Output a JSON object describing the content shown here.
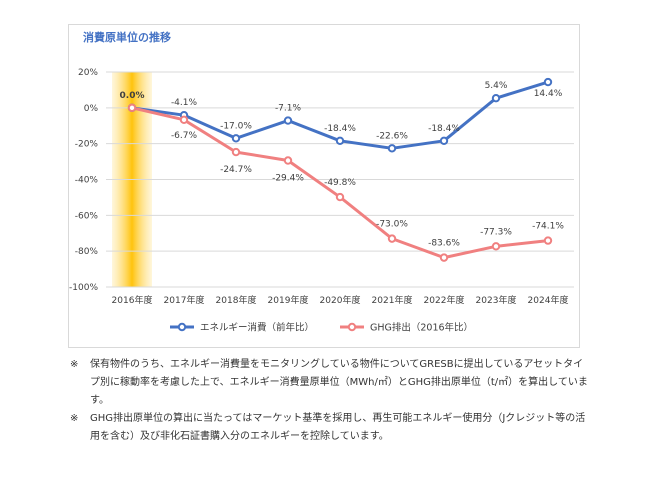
{
  "chart_data": {
    "type": "line",
    "title": "消費原単位の推移",
    "categories": [
      "2016年度",
      "2017年度",
      "2018年度",
      "2019年度",
      "2020年度",
      "2021年度",
      "2022年度",
      "2023年度",
      "2024年度"
    ],
    "ylim": [
      -100,
      20
    ],
    "yticks": [
      20,
      0,
      -20,
      -40,
      -60,
      -80,
      -100
    ],
    "ytick_labels": [
      "20%",
      "0%",
      "-20%",
      "-40%",
      "-60%",
      "-80%",
      "-100%"
    ],
    "grid": true,
    "legend_position": "bottom",
    "highlight_category": "2016年度",
    "series": [
      {
        "name": "エネルギー消費（前年比）",
        "color": "#4472c4",
        "values": [
          0.0,
          -4.1,
          -17.0,
          -7.1,
          -18.4,
          -22.6,
          -18.4,
          5.4,
          14.4
        ],
        "labels": [
          "0.0%",
          "-4.1%",
          "-17.0%",
          "-7.1%",
          "-18.4%",
          "-22.6%",
          "-18.4%",
          "5.4%",
          "14.4%"
        ]
      },
      {
        "name": "GHG排出（2016年比）",
        "color": "#f08080",
        "values": [
          0.0,
          -6.7,
          -24.7,
          -29.4,
          -49.8,
          -73.0,
          -83.6,
          -77.3,
          -74.1
        ],
        "labels": [
          "",
          "-6.7%",
          "-24.7%",
          "-29.4%",
          "-49.8%",
          "-73.0%",
          "-83.6%",
          "-77.3%",
          "-74.1%"
        ]
      }
    ]
  },
  "notes": [
    {
      "mark": "※",
      "text": "保有物件のうち、エネルギー消費量をモニタリングしている物件についてGRESBに提出しているアセットタイプ別に稼動率を考慮した上で、エネルギー消費量原単位（MWh/㎡）とGHG排出原単位（t/㎡）を算出しています。"
    },
    {
      "mark": "※",
      "text": "GHG排出原単位の算出に当たってはマーケット基準を採用し、再生可能エネルギー使用分（Jクレジット等の活用を含む）及び非化石証書購入分のエネルギーを控除しています。"
    }
  ]
}
